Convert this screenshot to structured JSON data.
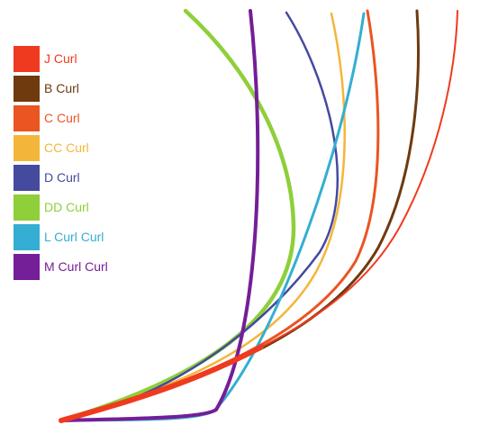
{
  "legend": {
    "items": [
      {
        "key": "j",
        "label": "J Curl",
        "color": "#f03a1f"
      },
      {
        "key": "b",
        "label": "B Curl",
        "color": "#6e3a0e"
      },
      {
        "key": "c",
        "label": "C Curl",
        "color": "#ea5522"
      },
      {
        "key": "cc",
        "label": "CC Curl",
        "color": "#f4b63a"
      },
      {
        "key": "d",
        "label": "D Curl",
        "color": "#444a9e"
      },
      {
        "key": "dd",
        "label": "DD Curl",
        "color": "#8ecf3a"
      },
      {
        "key": "l",
        "label": "L Curl Curl",
        "color": "#34aed2"
      },
      {
        "key": "m",
        "label": "M Curl Curl",
        "color": "#741e98"
      }
    ]
  }
}
